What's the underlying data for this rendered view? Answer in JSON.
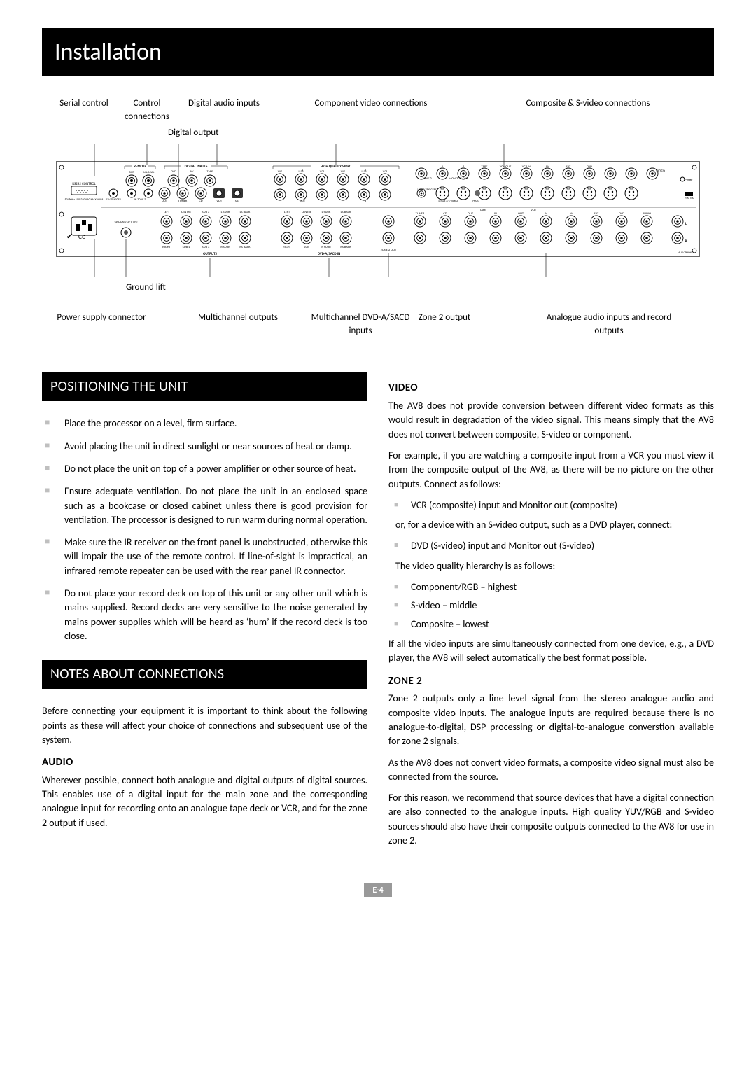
{
  "title": "Installation",
  "diagram": {
    "top_labels": [
      "Serial control",
      "Control connections",
      "Digital audio inputs",
      "Component video connections",
      "Composite & S-video connections"
    ],
    "digital_output_label": "Digital output",
    "ground_lift_label": "Ground lift",
    "bottom_labels": [
      "Power supply connector",
      "Multichannel outputs",
      "Multichannel DVD-A/SACD inputs",
      "Zone 2 output",
      "Analogue audio inputs and record outputs"
    ],
    "panel": {
      "remote": "REMOTE",
      "digital_inputs": "DIGITAL INPUTS",
      "high_quality_video": "HIGH QUALITY VIDEO",
      "rs232": "RS232 CONTROL",
      "outputs_label": "OUTPUTS",
      "dvda": "DVD-A/SACD IN",
      "row_remote": [
        "OUT",
        "IN LOCAL"
      ],
      "row_digital_top": [
        "DVD",
        "AV",
        "TAPE"
      ],
      "row_digital_bot": [
        "OUT",
        "TUNER",
        "CD",
        "VCR",
        "SAT"
      ],
      "hq_top": [
        "Y/G",
        "U/B",
        "V/R",
        "Y/G",
        "U/B",
        "V/R"
      ],
      "hq_nums": [
        "1",
        "2",
        "3"
      ],
      "hq_out": "OUT",
      "zone2": "ZONE 2",
      "monitor_out": "MONITOR OUT",
      "video_triggers": "VIDEO TRIGGERS",
      "rgb_svideo": "1/RGB  2/S-VIDEO",
      "prog": "PROG",
      "comp_top": [
        "TAPE",
        "VCR OUT",
        "VCR IN",
        "AV",
        "SAT",
        "DVD"
      ],
      "video_label": "VIDEO",
      "gnd": "GND",
      "mm_mc": "MM MC",
      "out_row1": [
        "LEFT",
        "CENTRE",
        "SUB 2",
        "L SURR",
        "LS BACK"
      ],
      "out_row2": [
        "RIGHT",
        "SUB 1",
        "SUB 3",
        "R SURR",
        "RS BACK"
      ],
      "in_row1": [
        "LEFT",
        "CENTRE",
        "L SURR",
        "LS BACK"
      ],
      "in_row2": [
        "RIGHT",
        "SUB",
        "R SURR",
        "RS BACK"
      ],
      "zone2out": "ZONE 2 OUT",
      "analogue": [
        "TUNER",
        "CD",
        "TAPE",
        "VCR",
        "AV",
        "SAT",
        "DVD",
        "AUDIO"
      ],
      "tape_inout": [
        "OUT",
        "IN"
      ],
      "lr": [
        "L",
        "R"
      ],
      "aux_phono": "AUX/ PHONO",
      "power": "50/60Hz 100-240VAC MAX 40VA",
      "trigger": [
        "12V TRIGGER",
        "IN ZONE 2"
      ],
      "ground_lift_in": "GROUND LIFT (IN)"
    }
  },
  "positioning": {
    "heading": "POSITIONING THE UNIT",
    "items": [
      "Place the processor on a level, firm surface.",
      "Avoid placing the unit in direct sunlight or near sources of heat or damp.",
      "Do not place the unit on top of a power amplifier or other source of heat.",
      "Ensure adequate ventilation. Do not place the unit in an enclosed space such as a bookcase or closed cabinet unless there is good provision for ventilation. The processor is designed to run warm during normal operation.",
      "Make sure the IR receiver on the front panel is unobstructed, otherwise this will impair the use of the remote control. If line-of-sight is impractical, an infrared remote repeater can be used with the rear panel IR connector.",
      "Do not place your record deck on top of this unit or any other unit which is mains supplied. Record decks are very sensitive to the noise generated by mains power supplies which will be heard as ‘hum’ if the record deck is too close."
    ]
  },
  "notes": {
    "heading": "NOTES ABOUT CONNECTIONS",
    "intro": "Before connecting your equipment it is important to think about the following points as these will affect your choice of connections and subsequent use of the system.",
    "audio_head": "AUDIO",
    "audio_p": "Wherever possible, connect both analogue and digital outputs of digital sources. This enables use of a digital input for the main zone and the corresponding analogue input for recording onto an analogue tape deck or VCR, and for the zone 2 output if used."
  },
  "video": {
    "head": "VIDEO",
    "p1": "The AV8 does not provide conversion between different video formats as this would result in degradation of the video signal. This means simply that the AV8 does not convert between composite, S-video or component.",
    "p2": "For example, if you are watching a composite input from a VCR you must view it from the composite output of the AV8, as there will be no picture on the other outputs. Connect as follows:",
    "li1": "VCR (composite) input and Monitor out (composite)",
    "p3": "or, for a device with an S-video output, such as a DVD player, connect:",
    "li2": "DVD (S-video) input and Monitor out (S-video)",
    "p4": "The video quality hierarchy is as follows:",
    "hier": [
      "Component/RGB – highest",
      "S-video – middle",
      "Composite – lowest"
    ],
    "p5": "If all the video inputs are simultaneously connected from one device, e.g., a DVD player, the AV8 will select automatically the best format possible."
  },
  "zone2": {
    "head": "ZONE 2",
    "p1": "Zone 2 outputs only a line level signal from the stereo analogue audio and composite video inputs. The analogue inputs are required because there is no analogue-to-digital, DSP processing or digital-to-analogue converstion available for zone 2 signals.",
    "p2": "As the AV8 does not convert video formats, a composite video signal must also be connected from the source.",
    "p3": "For this reason, we recommend that source devices that have a digital connection are also connected to the analogue inputs. High quality YUV/RGB and S-video sources should also have their composite outputs connected to the AV8 for use in zone 2."
  },
  "page": "E-4"
}
